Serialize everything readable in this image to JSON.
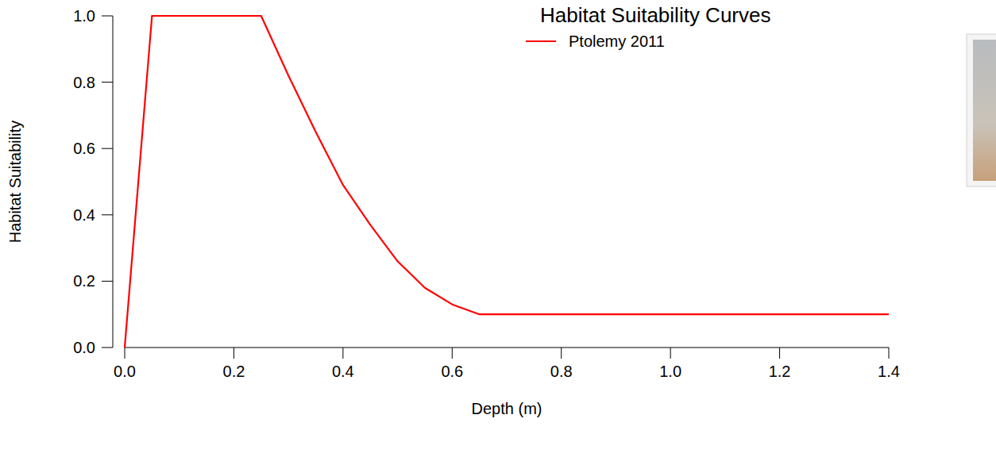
{
  "chart_data": {
    "type": "line",
    "title": "Habitat Suitability Curves",
    "x_label": "Depth (m)",
    "y_label": "Habitat Suitability",
    "x": [
      0,
      0.05,
      0.25,
      0.3,
      0.35,
      0.4,
      0.45,
      0.5,
      0.55,
      0.6,
      0.65,
      1.4
    ],
    "series": [
      {
        "name": "Ptolemy 2011",
        "color": "#ff0000",
        "values": [
          0,
          1,
          1,
          0.82,
          0.65,
          0.49,
          0.37,
          0.26,
          0.18,
          0.13,
          0.1,
          0.1
        ]
      }
    ],
    "xlim": [
      0,
      1.4
    ],
    "ylim": [
      0,
      1
    ],
    "xticks": [
      {
        "value": 0,
        "label": "0.0"
      },
      {
        "value": 0.2,
        "label": "0.2"
      },
      {
        "value": 0.4,
        "label": "0.4"
      },
      {
        "value": 0.6,
        "label": "0.6"
      },
      {
        "value": 0.8,
        "label": "0.8"
      },
      {
        "value": 1,
        "label": "1.0"
      },
      {
        "value": 1.2,
        "label": "1.2"
      },
      {
        "value": 1.4,
        "label": "1.4"
      }
    ],
    "yticks": [
      {
        "value": 0,
        "label": "0.0"
      },
      {
        "value": 0.2,
        "label": "0.2"
      },
      {
        "value": 0.4,
        "label": "0.4"
      },
      {
        "value": 0.6,
        "label": "0.6"
      },
      {
        "value": 0.8,
        "label": "0.8"
      },
      {
        "value": 1,
        "label": "1.0"
      }
    ],
    "legend": "top-right",
    "grid": false
  }
}
